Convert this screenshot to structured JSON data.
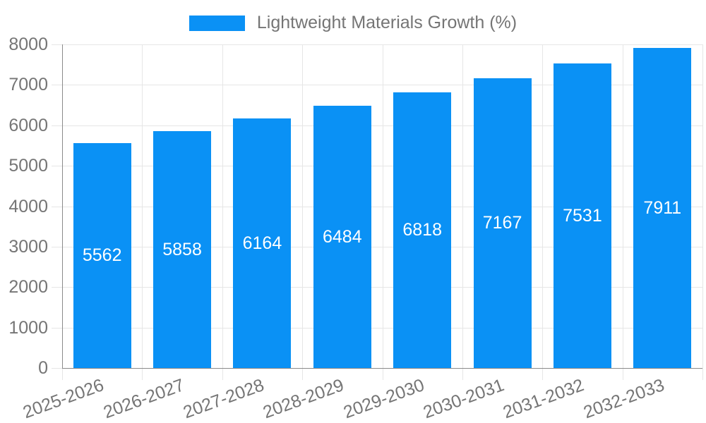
{
  "legend": {
    "label": "Lightweight Materials Growth (%)"
  },
  "chart_data": {
    "type": "bar",
    "title": "Lightweight Materials Growth (%)",
    "xlabel": "",
    "ylabel": "",
    "categories": [
      "2025-2026",
      "2026-2027",
      "2027-2028",
      "2028-2029",
      "2029-2030",
      "2030-2031",
      "2031-2032",
      "2032-2033"
    ],
    "values": [
      5562,
      5858,
      6164,
      6484,
      6818,
      7167,
      7531,
      7911
    ],
    "value_labels": [
      "5562",
      "5858",
      "6164",
      "6484",
      "6818",
      "7167",
      "7531",
      "7911"
    ],
    "ylim": [
      0,
      8000
    ],
    "yticks": [
      0,
      1000,
      2000,
      3000,
      4000,
      5000,
      6000,
      7000,
      8000
    ],
    "ytick_labels": [
      "0",
      "1000",
      "2000",
      "3000",
      "4000",
      "5000",
      "6000",
      "7000",
      "8000"
    ],
    "grid": true,
    "legend_position": "top",
    "value_label_position": "center-inside",
    "colors": {
      "bar": "#0a91f5",
      "axis_text": "#757575",
      "gridline": "#e6e6e6",
      "axis_line": "#8a8a8a",
      "value_label": "#ffffff",
      "background": "#ffffff"
    }
  }
}
